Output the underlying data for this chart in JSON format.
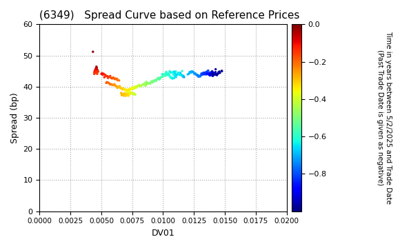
{
  "title": "(6349)   Spread Curve based on Reference Prices",
  "xlabel": "DV01",
  "ylabel": "Spread (bp)",
  "xlim": [
    0.0,
    0.02
  ],
  "ylim": [
    0,
    60
  ],
  "xticks": [
    0.0,
    0.0025,
    0.005,
    0.0075,
    0.01,
    0.0125,
    0.015,
    0.0175,
    0.02
  ],
  "yticks": [
    0,
    10,
    20,
    30,
    40,
    50,
    60
  ],
  "colorbar_label": "Time in years between 5/2/2025 and Trade Date\n(Past Trade Date is given as negative)",
  "colorbar_ticks": [
    0.0,
    -0.2,
    -0.4,
    -0.6,
    -0.8
  ],
  "cmap": "jet",
  "vmin": -1.0,
  "vmax": 0.0
}
